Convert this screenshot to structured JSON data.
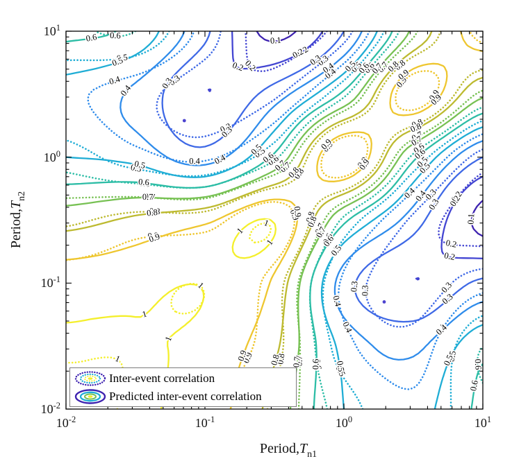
{
  "axes": {
    "xlabel": {
      "prefix": "Period,",
      "symbol": "T",
      "sub": "n1"
    },
    "ylabel": {
      "prefix": "Period,",
      "symbol": "T",
      "sub": "n2"
    },
    "x_ticks": [
      {
        "base": "10",
        "exp": "-2",
        "log": -2
      },
      {
        "base": "10",
        "exp": "-1",
        "log": -1
      },
      {
        "base": "10",
        "exp": "0",
        "log": 0
      },
      {
        "base": "10",
        "exp": "1",
        "log": 1
      }
    ],
    "y_ticks": [
      {
        "base": "10",
        "exp": "1",
        "log": 1
      },
      {
        "base": "10",
        "exp": "0",
        "log": 0
      },
      {
        "base": "10",
        "exp": "-1",
        "log": -1
      },
      {
        "base": "10",
        "exp": "-2",
        "log": -2
      }
    ]
  },
  "legend": {
    "items": [
      {
        "label": "Inter-event correlation",
        "style": "dotted"
      },
      {
        "label": "Predicted inter-event correlation",
        "style": "solid"
      }
    ]
  },
  "chart_data": {
    "type": "contour",
    "title": "",
    "xlabel": "Period, T_n1",
    "ylabel": "Period, T_n2",
    "xscale": "log",
    "yscale": "log",
    "xlim": [
      0.01,
      10
    ],
    "ylim": [
      0.01,
      10
    ],
    "grid_on": false,
    "legend_position": "southwest",
    "levels": [
      0.1,
      0.2,
      0.3,
      0.4,
      0.5,
      0.6,
      0.7,
      0.8,
      0.9,
      1.0
    ],
    "level_labels": [
      "0.1",
      "0.2",
      "0.3",
      "0.4",
      "0.5",
      "0.6",
      "0.7",
      "0.8",
      "0.9",
      "1"
    ],
    "level_colors": {
      "0.1": "#3e23b0",
      "0.2": "#4345d2",
      "0.3": "#3f69e6",
      "0.4": "#2f8ceb",
      "0.5": "#1fadd5",
      "0.6": "#2dbda6",
      "0.7": "#77c153",
      "0.8": "#bdba30",
      "0.9": "#eec62f",
      "1": "#f4ef2c"
    },
    "grid_log10_periods": [
      -2,
      -1.5,
      -1,
      -0.5,
      0,
      0.5,
      1
    ],
    "series": [
      {
        "name": "Inter-event correlation",
        "line": "dotted",
        "rho": [
          [
            1.0,
            0.99,
            0.95,
            0.78,
            0.55,
            0.42,
            0.58
          ],
          [
            0.99,
            0.99,
            0.96,
            0.84,
            0.44,
            0.34,
            0.6
          ],
          [
            0.95,
            0.96,
            0.99,
            0.85,
            0.38,
            0.24,
            0.36
          ],
          [
            0.78,
            0.84,
            0.85,
            0.98,
            0.58,
            0.28,
            0.13
          ],
          [
            0.55,
            0.44,
            0.38,
            0.58,
            0.97,
            0.58,
            0.26
          ],
          [
            0.42,
            0.34,
            0.24,
            0.28,
            0.58,
            0.95,
            0.68
          ],
          [
            0.58,
            0.6,
            0.36,
            0.13,
            0.26,
            0.68,
            0.93
          ]
        ]
      },
      {
        "name": "Predicted inter-event correlation",
        "line": "solid",
        "rho": [
          [
            1.0,
            1.0,
            0.96,
            0.76,
            0.5,
            0.46,
            0.62
          ],
          [
            1.0,
            1.0,
            0.97,
            0.82,
            0.47,
            0.38,
            0.57
          ],
          [
            0.96,
            0.97,
            0.99,
            0.88,
            0.35,
            0.2,
            0.32
          ],
          [
            0.76,
            0.82,
            0.88,
            0.99,
            0.62,
            0.35,
            0.07
          ],
          [
            0.5,
            0.47,
            0.35,
            0.62,
            0.98,
            0.62,
            0.3
          ],
          [
            0.46,
            0.38,
            0.2,
            0.35,
            0.62,
            0.97,
            0.72
          ],
          [
            0.62,
            0.57,
            0.32,
            0.07,
            0.3,
            0.72,
            0.95
          ]
        ]
      }
    ],
    "minima_markers": [
      {
        "Tn1": 0.071,
        "Tn2": 1.95
      },
      {
        "Tn1": 1.95,
        "Tn2": 0.071
      }
    ],
    "marker_color": "#4d43cf"
  }
}
